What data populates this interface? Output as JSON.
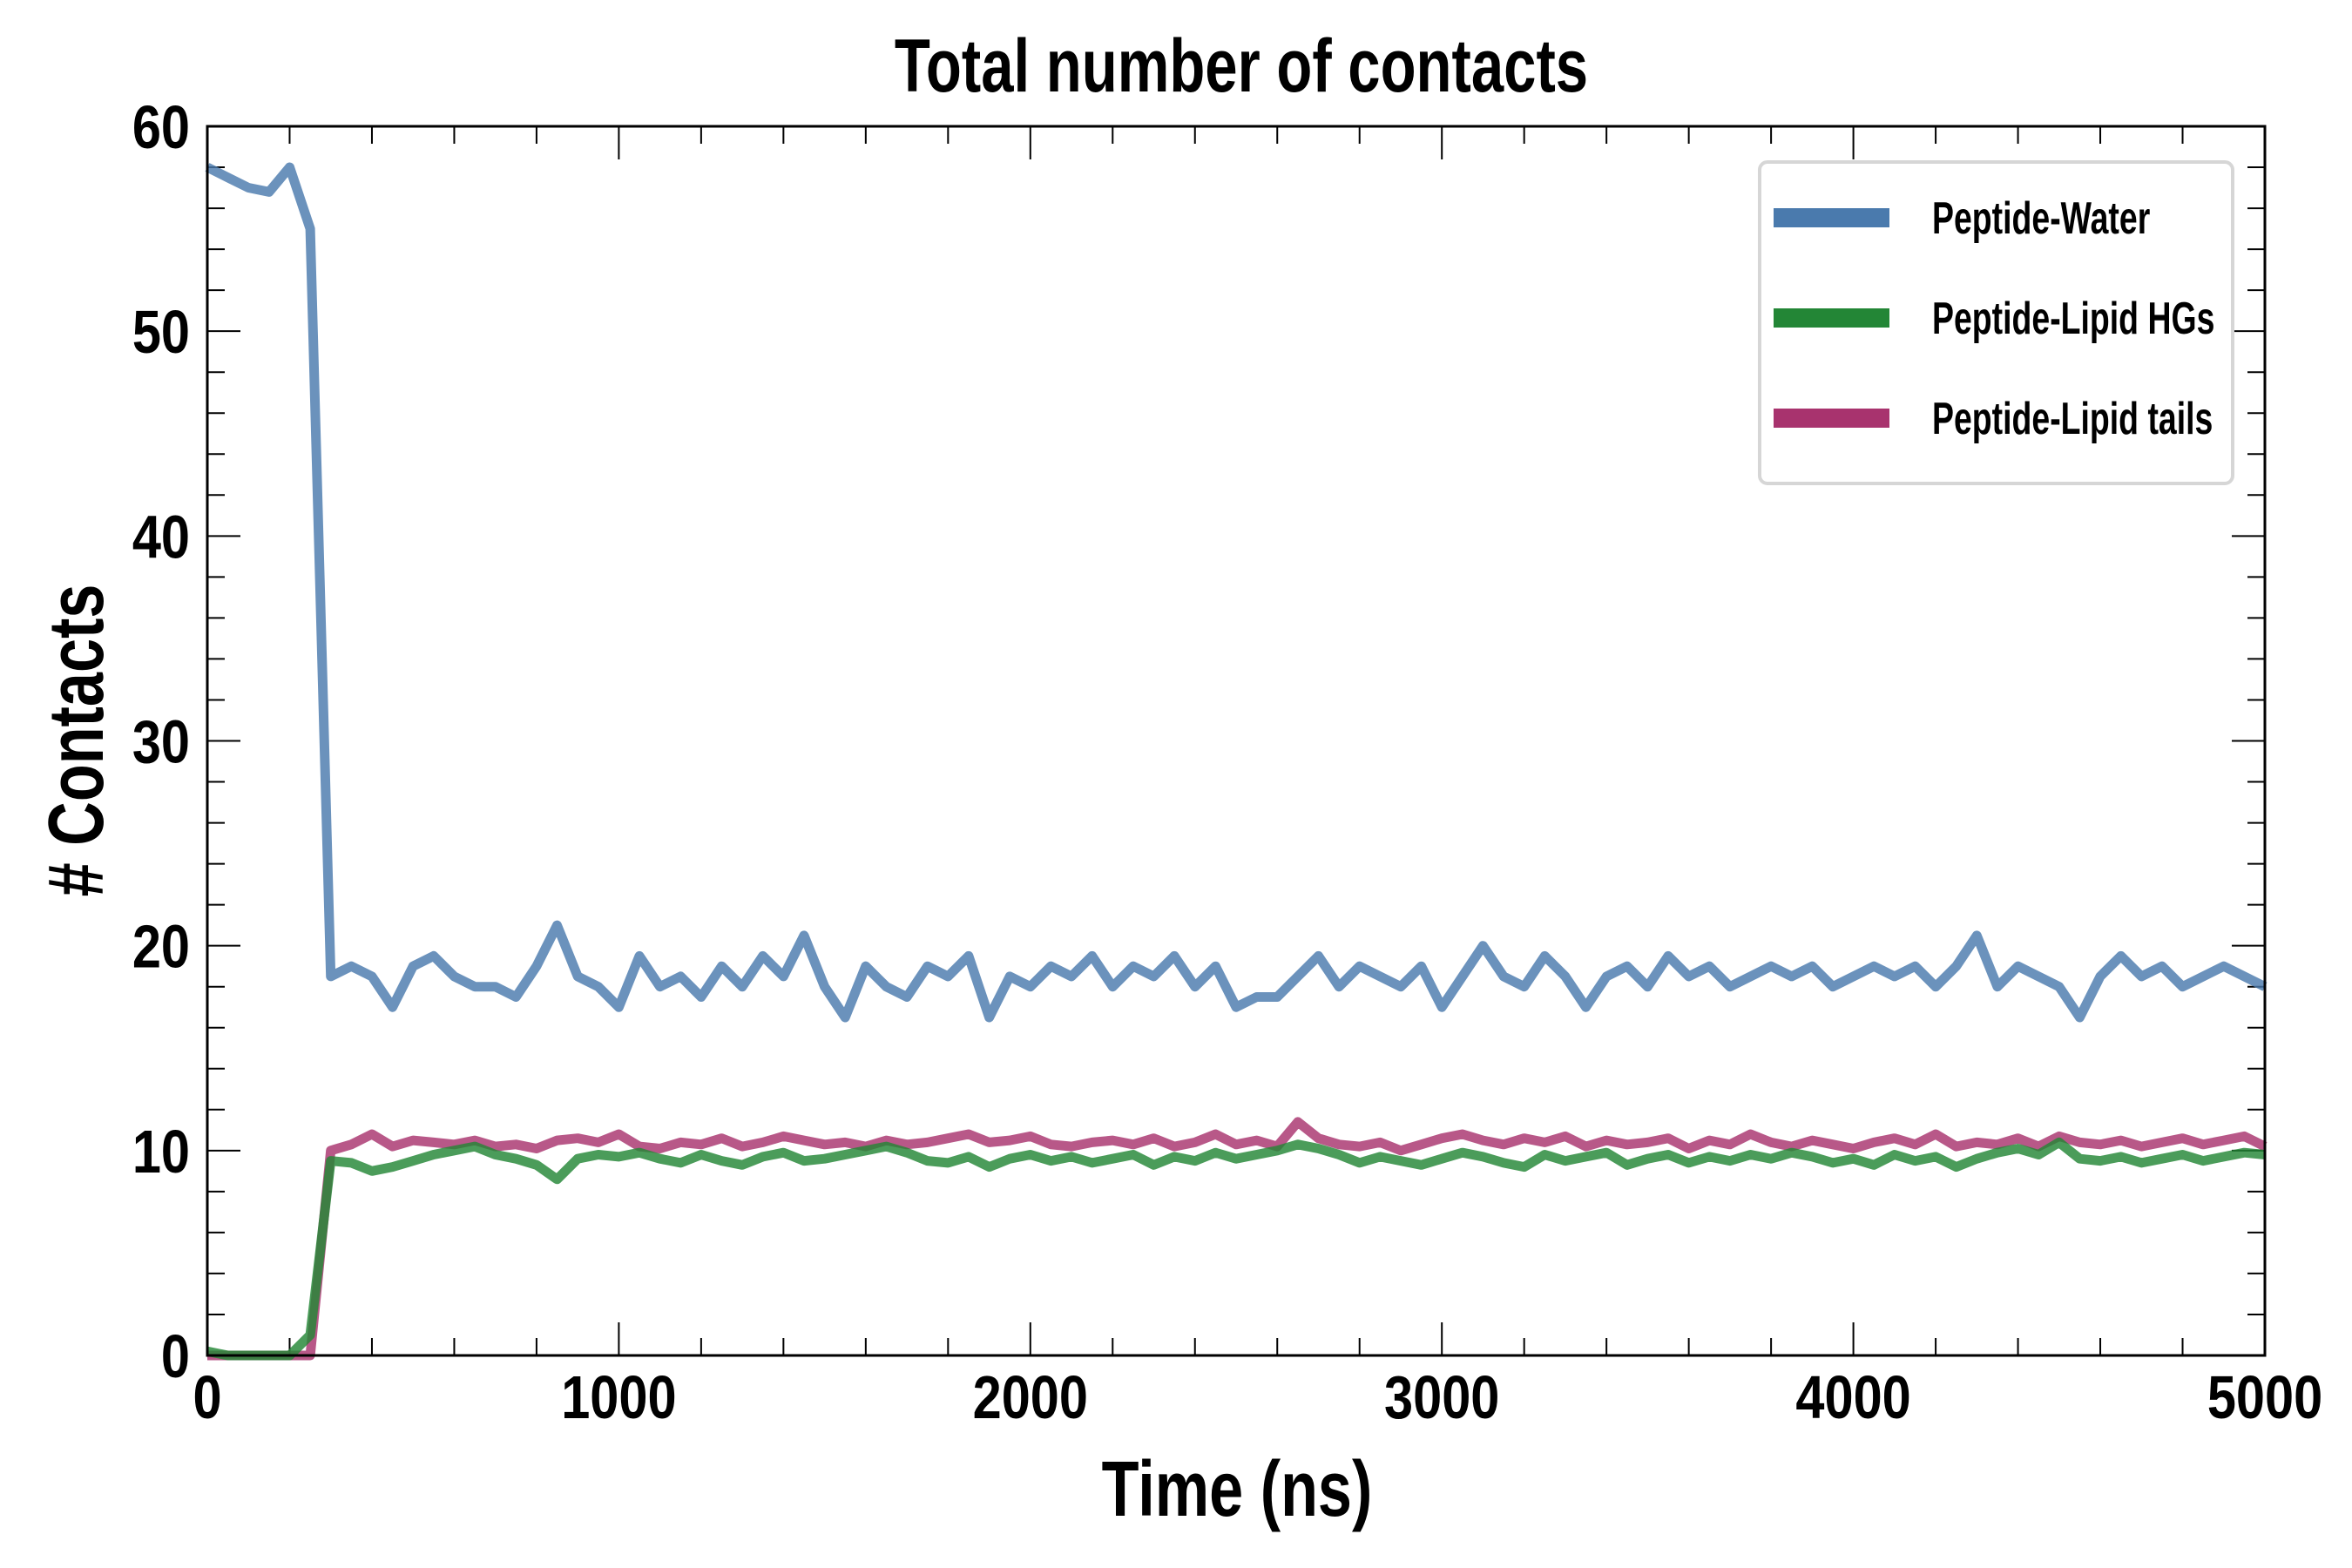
{
  "chart_data": {
    "type": "line",
    "title": "Total number of contacts",
    "xlabel": "Time (ns)",
    "ylabel": "# Contacts",
    "xlim": [
      0,
      5000
    ],
    "ylim": [
      0,
      60
    ],
    "x_major_ticks": [
      0,
      1000,
      2000,
      3000,
      4000,
      5000
    ],
    "x_tick_labels": [
      "0",
      "1000",
      "2000",
      "3000",
      "4000",
      "5000"
    ],
    "y_major_ticks": [
      0,
      10,
      20,
      30,
      40,
      50,
      60
    ],
    "y_tick_labels": [
      "0",
      "10",
      "20",
      "30",
      "40",
      "50",
      "60"
    ],
    "x_minor_step": 200,
    "y_minor_step": 2,
    "grid": false,
    "legend_position": "top-right",
    "x_start": 0,
    "x_step": 50,
    "series": [
      {
        "name": "Peptide-Water",
        "color": "#4a7aad",
        "values": [
          58,
          57.5,
          57,
          56.8,
          58,
          55,
          18.5,
          19,
          18.5,
          17,
          19,
          19.5,
          18.5,
          18,
          18,
          17.5,
          19,
          21,
          18.5,
          18,
          17,
          19.5,
          18,
          18.5,
          17.5,
          19,
          18,
          19.5,
          18.5,
          20.5,
          18,
          16.5,
          19,
          18,
          17.5,
          19,
          18.5,
          19.5,
          16.5,
          18.5,
          18,
          19,
          18.5,
          19.5,
          18,
          19,
          18.5,
          19.5,
          18,
          19,
          17,
          17.5,
          17.5,
          18.5,
          19.5,
          18,
          19,
          18.5,
          18,
          19,
          17,
          18.5,
          20,
          18.5,
          18,
          19.5,
          18.5,
          17,
          18.5,
          19,
          18,
          19.5,
          18.5,
          19,
          18,
          18.5,
          19,
          18.5,
          19,
          18,
          18.5,
          19,
          18.5,
          19,
          18,
          19,
          20.5,
          18,
          19,
          18.5,
          18,
          16.5,
          18.5,
          19.5,
          18.5,
          19,
          18,
          18.5,
          19,
          18.5,
          18
        ]
      },
      {
        "name": "Peptide-Lipid HGs",
        "color": "#238636",
        "values": [
          0.2,
          0,
          0,
          0,
          0,
          1,
          9.5,
          9.4,
          9,
          9.2,
          9.5,
          9.8,
          10,
          10.2,
          9.8,
          9.6,
          9.3,
          8.6,
          9.6,
          9.8,
          9.7,
          9.9,
          9.6,
          9.4,
          9.8,
          9.5,
          9.3,
          9.7,
          9.9,
          9.5,
          9.6,
          9.8,
          10,
          10.2,
          9.9,
          9.5,
          9.4,
          9.7,
          9.2,
          9.6,
          9.8,
          9.5,
          9.7,
          9.4,
          9.6,
          9.8,
          9.3,
          9.7,
          9.5,
          9.9,
          9.6,
          9.8,
          10,
          10.3,
          10.1,
          9.8,
          9.4,
          9.7,
          9.5,
          9.3,
          9.6,
          9.9,
          9.7,
          9.4,
          9.2,
          9.8,
          9.5,
          9.7,
          9.9,
          9.3,
          9.6,
          9.8,
          9.4,
          9.7,
          9.5,
          9.8,
          9.6,
          9.9,
          9.7,
          9.4,
          9.6,
          9.3,
          9.8,
          9.5,
          9.7,
          9.2,
          9.6,
          9.9,
          10.1,
          9.8,
          10.4,
          9.6,
          9.5,
          9.7,
          9.4,
          9.6,
          9.8,
          9.5,
          9.7,
          9.9,
          9.8
        ]
      },
      {
        "name": "Peptide-Lipid tails",
        "color": "#a8336e",
        "values": [
          0,
          0,
          0,
          0,
          0,
          0,
          10,
          10.3,
          10.8,
          10.2,
          10.5,
          10.4,
          10.3,
          10.5,
          10.2,
          10.3,
          10.1,
          10.5,
          10.6,
          10.4,
          10.8,
          10.2,
          10.1,
          10.4,
          10.3,
          10.6,
          10.2,
          10.4,
          10.7,
          10.5,
          10.3,
          10.4,
          10.2,
          10.5,
          10.3,
          10.4,
          10.6,
          10.8,
          10.4,
          10.5,
          10.7,
          10.3,
          10.2,
          10.4,
          10.5,
          10.3,
          10.6,
          10.2,
          10.4,
          10.8,
          10.3,
          10.5,
          10.2,
          11.4,
          10.6,
          10.3,
          10.2,
          10.4,
          10,
          10.3,
          10.6,
          10.8,
          10.5,
          10.3,
          10.6,
          10.4,
          10.7,
          10.2,
          10.5,
          10.3,
          10.4,
          10.6,
          10.1,
          10.5,
          10.3,
          10.8,
          10.4,
          10.2,
          10.5,
          10.3,
          10.1,
          10.4,
          10.6,
          10.3,
          10.8,
          10.2,
          10.4,
          10.3,
          10.6,
          10.2,
          10.7,
          10.4,
          10.3,
          10.5,
          10.2,
          10.4,
          10.6,
          10.3,
          10.5,
          10.7,
          10.2
        ]
      }
    ]
  }
}
